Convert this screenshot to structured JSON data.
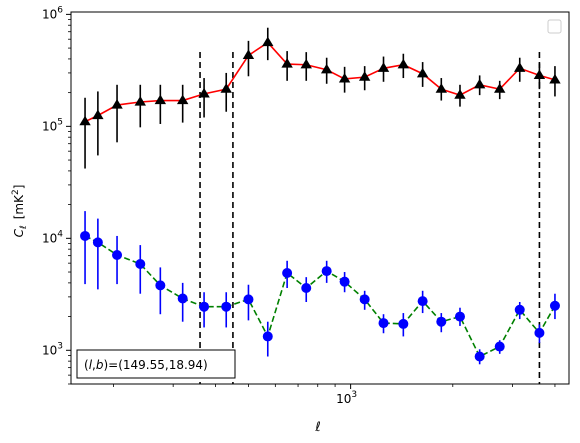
{
  "chart_data": {
    "type": "scatter",
    "title": "",
    "xlabel": "ℓ",
    "ylabel_main": "C",
    "ylabel_sub": "ℓ",
    "ylabel_unit": "[mK",
    "ylabel_unit_sup": "2",
    "ylabel_unit_end": "]",
    "xscale": "log",
    "yscale": "log",
    "xlim": [
      150,
      4400
    ],
    "ylim": [
      500,
      1050000
    ],
    "x_tick_labels": [
      {
        "value": 1000,
        "base": "10",
        "exp": "3"
      }
    ],
    "y_tick_labels": [
      {
        "value": 1000,
        "base": "10",
        "exp": "3"
      },
      {
        "value": 10000,
        "base": "10",
        "exp": "4"
      },
      {
        "value": 100000,
        "base": "10",
        "exp": "5"
      },
      {
        "value": 1000000,
        "base": "10",
        "exp": "6"
      }
    ],
    "vlines": [
      360,
      450,
      3600
    ],
    "annotation": "(l, b)=(149.55,18.94)",
    "annotation_parts": {
      "prefix": "(",
      "l": "l",
      "comma": ",",
      "b": "b",
      "suffix": ")=(149.55,18.94)"
    },
    "legend": {
      "position": "top-right",
      "entries": []
    },
    "series": [
      {
        "line_color": "#ff0000",
        "line_style": "solid",
        "marker": "triangle",
        "marker_color": "#000000",
        "errorbar_color": "#000000",
        "points": [
          {
            "x": 165,
            "y": 110000,
            "lo": 42000,
            "hi": 180000
          },
          {
            "x": 180,
            "y": 125000,
            "lo": 55000,
            "hi": 205000
          },
          {
            "x": 205,
            "y": 155000,
            "lo": 72000,
            "hi": 235000
          },
          {
            "x": 240,
            "y": 165000,
            "lo": 98000,
            "hi": 235000
          },
          {
            "x": 275,
            "y": 170000,
            "lo": 105000,
            "hi": 235000
          },
          {
            "x": 320,
            "y": 170000,
            "lo": 108000,
            "hi": 235000
          },
          {
            "x": 370,
            "y": 195000,
            "lo": 120000,
            "hi": 270000
          },
          {
            "x": 430,
            "y": 215000,
            "lo": 135000,
            "hi": 300000
          },
          {
            "x": 500,
            "y": 430000,
            "lo": 280000,
            "hi": 580000
          },
          {
            "x": 570,
            "y": 560000,
            "lo": 390000,
            "hi": 760000
          },
          {
            "x": 650,
            "y": 360000,
            "lo": 255000,
            "hi": 470000
          },
          {
            "x": 740,
            "y": 355000,
            "lo": 255000,
            "hi": 460000
          },
          {
            "x": 850,
            "y": 320000,
            "lo": 240000,
            "hi": 410000
          },
          {
            "x": 960,
            "y": 265000,
            "lo": 200000,
            "hi": 340000
          },
          {
            "x": 1100,
            "y": 275000,
            "lo": 210000,
            "hi": 345000
          },
          {
            "x": 1250,
            "y": 330000,
            "lo": 250000,
            "hi": 420000
          },
          {
            "x": 1430,
            "y": 355000,
            "lo": 270000,
            "hi": 445000
          },
          {
            "x": 1630,
            "y": 295000,
            "lo": 225000,
            "hi": 375000
          },
          {
            "x": 1850,
            "y": 215000,
            "lo": 170000,
            "hi": 270000
          },
          {
            "x": 2100,
            "y": 190000,
            "lo": 150000,
            "hi": 235000
          },
          {
            "x": 2400,
            "y": 235000,
            "lo": 190000,
            "hi": 285000
          },
          {
            "x": 2750,
            "y": 215000,
            "lo": 175000,
            "hi": 255000
          },
          {
            "x": 3150,
            "y": 330000,
            "lo": 250000,
            "hi": 410000
          },
          {
            "x": 3600,
            "y": 285000,
            "lo": 215000,
            "hi": 365000
          },
          {
            "x": 4000,
            "y": 260000,
            "lo": 185000,
            "hi": 345000
          }
        ]
      },
      {
        "line_color": "#008000",
        "line_style": "dashed",
        "marker": "circle",
        "marker_color": "#0000ff",
        "errorbar_color": "#0000ff",
        "points": [
          {
            "x": 165,
            "y": 10500,
            "lo": 3900,
            "hi": 17500
          },
          {
            "x": 180,
            "y": 9200,
            "lo": 3500,
            "hi": 15000
          },
          {
            "x": 205,
            "y": 7100,
            "lo": 3900,
            "hi": 10500
          },
          {
            "x": 240,
            "y": 5900,
            "lo": 3200,
            "hi": 8700
          },
          {
            "x": 275,
            "y": 3800,
            "lo": 2100,
            "hi": 5500
          },
          {
            "x": 320,
            "y": 2900,
            "lo": 1800,
            "hi": 4000
          },
          {
            "x": 370,
            "y": 2450,
            "lo": 1600,
            "hi": 3300
          },
          {
            "x": 430,
            "y": 2450,
            "lo": 1600,
            "hi": 3300
          },
          {
            "x": 500,
            "y": 2850,
            "lo": 1850,
            "hi": 3850
          },
          {
            "x": 570,
            "y": 1330,
            "lo": 880,
            "hi": 1800
          },
          {
            "x": 650,
            "y": 4900,
            "lo": 3600,
            "hi": 6300
          },
          {
            "x": 740,
            "y": 3600,
            "lo": 2700,
            "hi": 4500
          },
          {
            "x": 850,
            "y": 5100,
            "lo": 4000,
            "hi": 6300
          },
          {
            "x": 960,
            "y": 4100,
            "lo": 3300,
            "hi": 5000
          },
          {
            "x": 1100,
            "y": 2850,
            "lo": 2300,
            "hi": 3400
          },
          {
            "x": 1250,
            "y": 1750,
            "lo": 1420,
            "hi": 2100
          },
          {
            "x": 1430,
            "y": 1720,
            "lo": 1330,
            "hi": 2150
          },
          {
            "x": 1630,
            "y": 2750,
            "lo": 2150,
            "hi": 3400
          },
          {
            "x": 1850,
            "y": 1800,
            "lo": 1450,
            "hi": 2150
          },
          {
            "x": 2100,
            "y": 2000,
            "lo": 1650,
            "hi": 2400
          },
          {
            "x": 2400,
            "y": 880,
            "lo": 750,
            "hi": 1020
          },
          {
            "x": 2750,
            "y": 1080,
            "lo": 930,
            "hi": 1230
          },
          {
            "x": 3150,
            "y": 2300,
            "lo": 1900,
            "hi": 2700
          },
          {
            "x": 3600,
            "y": 1430,
            "lo": 1160,
            "hi": 1700
          },
          {
            "x": 4000,
            "y": 2500,
            "lo": 1900,
            "hi": 3200
          }
        ]
      }
    ]
  }
}
